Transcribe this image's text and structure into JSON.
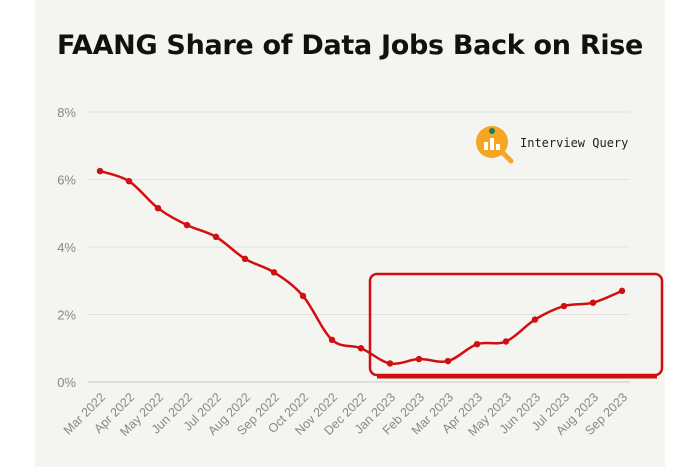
{
  "chart_data": {
    "type": "line",
    "title": "FAANG Share of Data Jobs Back on Rise",
    "categories": [
      "Mar 2022",
      "Apr 2022",
      "May 2022",
      "Jun 2022",
      "Jul 2022",
      "Aug 2022",
      "Sep 2022",
      "Oct 2022",
      "Nov 2022",
      "Dec 2022",
      "Jan 2023",
      "Feb 2023",
      "Mar 2023",
      "Apr 2023",
      "May 2023",
      "Jun 2023",
      "Jul 2023",
      "Aug 2023",
      "Sep 2023"
    ],
    "series": [
      {
        "name": "",
        "values": [
          6.25,
          5.95,
          5.15,
          4.65,
          4.3,
          3.65,
          3.25,
          2.55,
          1.25,
          1.0,
          0.55,
          0.68,
          0.62,
          1.12,
          1.2,
          1.85,
          2.25,
          2.35,
          2.7
        ],
        "color": "#d01010"
      }
    ],
    "ylim": [
      0,
      8
    ],
    "yticks": [
      "0%",
      "2%",
      "4%",
      "6%",
      "8%"
    ],
    "grid": true,
    "highlight_box": {
      "from": "Jan 2023",
      "to": "Sep 2023",
      "color": "#d01010"
    }
  },
  "brand": {
    "name": "Interview Query",
    "logo_icon": "magnifier-bar-chart-icon",
    "colors": {
      "accent": "#f5a623",
      "dot": "#1d7a5a"
    }
  }
}
